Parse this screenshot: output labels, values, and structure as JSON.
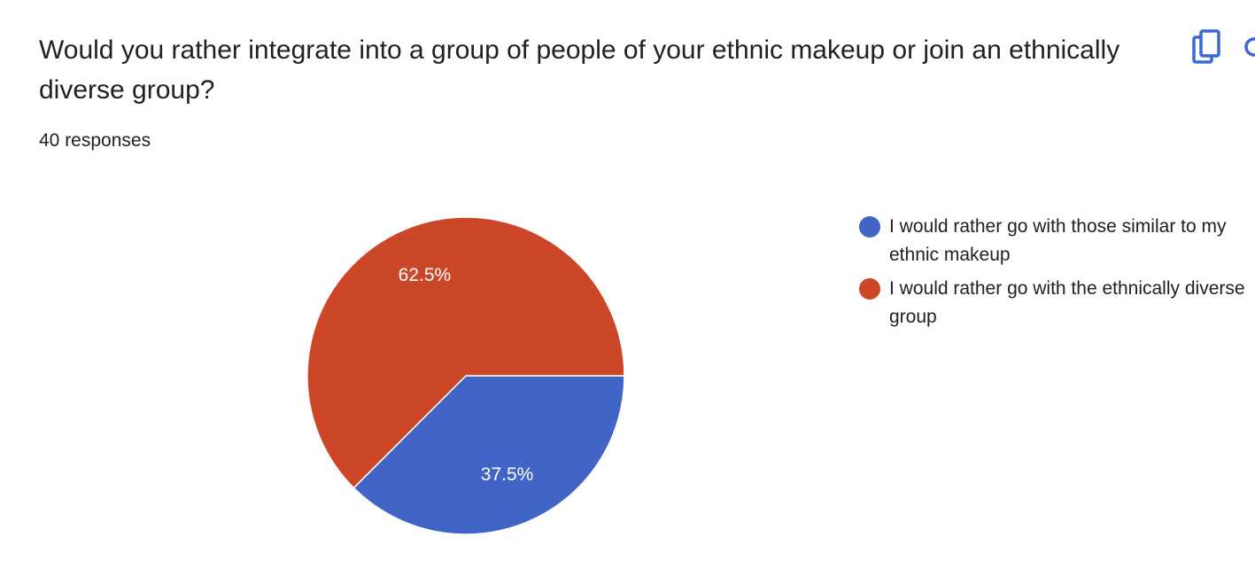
{
  "card": {
    "question": "Would you rather integrate into a group of people of your ethnic makeup or join an ethnically diverse group?",
    "responses_label": "40 responses"
  },
  "icons": {
    "copy": "copy-icon",
    "more": "more-icon"
  },
  "colors": {
    "similar": "#4065c7",
    "diverse": "#cc4628"
  },
  "chart_data": {
    "type": "pie",
    "title": "",
    "total_responses": 40,
    "legend_position": "right",
    "slices": [
      {
        "label": "I would rather go with those similar to my ethnic makeup",
        "value": 37.5,
        "display": "37.5%",
        "color": "#4065c7"
      },
      {
        "label": "I would rather go with the ethnically diverse group",
        "value": 62.5,
        "display": "62.5%",
        "color": "#cc4628"
      }
    ]
  }
}
